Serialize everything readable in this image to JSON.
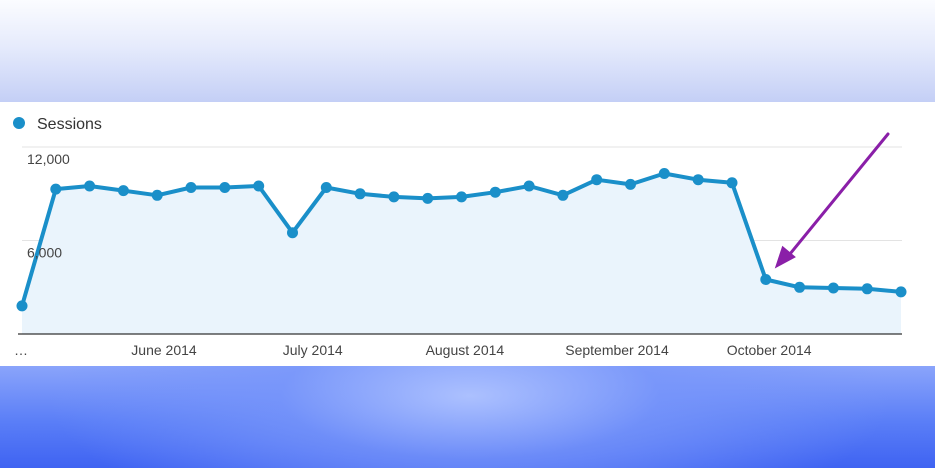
{
  "chart_data": {
    "type": "area",
    "legend": {
      "label": "Sessions",
      "placement": "top-left"
    },
    "y_ticks": [
      {
        "value": 12000,
        "label": "12,000"
      },
      {
        "value": 6000,
        "label": "6,000"
      }
    ],
    "ylim": [
      0,
      12000
    ],
    "x_tick_labels": [
      {
        "index": 0,
        "label": "…"
      },
      {
        "index": 4.2,
        "label": "June 2014"
      },
      {
        "index": 8.6,
        "label": "July 2014"
      },
      {
        "index": 13.1,
        "label": "August 2014"
      },
      {
        "index": 17.6,
        "label": "September 2014"
      },
      {
        "index": 22.1,
        "label": "October 2014"
      }
    ],
    "grid": true,
    "series": [
      {
        "name": "Sessions",
        "color": "#1a8fc9",
        "fill": "#eaf4fc",
        "values": [
          1800,
          9300,
          9500,
          9200,
          8900,
          9400,
          9400,
          9500,
          6500,
          9400,
          9000,
          8800,
          8700,
          8800,
          9100,
          9500,
          8900,
          9900,
          9600,
          10300,
          9900,
          9700,
          3500,
          3000,
          2950,
          2900,
          2700
        ]
      }
    ],
    "annotation": {
      "type": "arrow",
      "color": "#8a1fa8",
      "points_to_index": 22
    }
  }
}
